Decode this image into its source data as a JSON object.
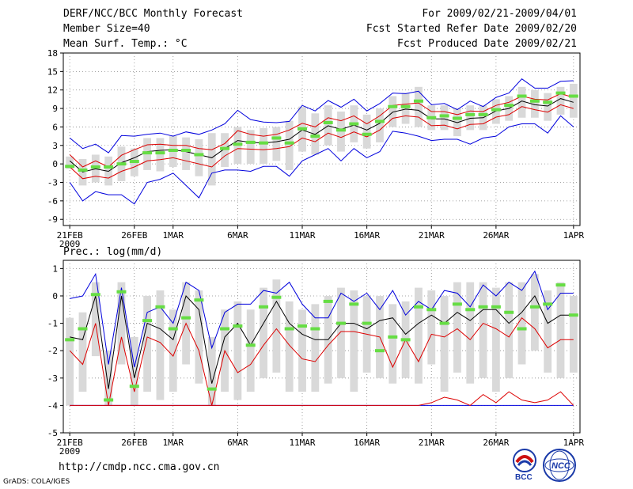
{
  "header": {
    "title": "DERF/NCC/BCC Monthly Forecast",
    "member_size": "Member Size=40",
    "variable1": "Mean Surf. Temp.: °C",
    "period": "For 2009/02/21-2009/04/01",
    "refer_date": "Fcst Started Refer Date 2009/02/20",
    "produced_date": "Fcst Produced Date 2009/02/21"
  },
  "footer": {
    "url": "http://cmdp.ncc.cma.gov.cn",
    "grads": "GrADS: COLA/IGES",
    "logo1_text": "BCC",
    "logo2_text": "NCC"
  },
  "colors": {
    "envelope": "#0000dd",
    "spread": "#dd0000",
    "mean": "#000000",
    "marker": "#66dd44",
    "box": "#d9d9d9"
  },
  "chart_data": [
    {
      "type": "line",
      "title": "Mean Surf. Temp.: °C",
      "x_ticks": [
        "21FEB",
        "26FEB",
        "1MAR",
        "6MAR",
        "11MAR",
        "16MAR",
        "21MAR",
        "26MAR",
        "1APR"
      ],
      "x_tick_days": [
        0,
        5,
        8,
        13,
        18,
        23,
        28,
        33,
        39
      ],
      "year_label": "2009",
      "ylim": [
        -10,
        18
      ],
      "y_ticks": [
        -9,
        -6,
        -3,
        0,
        3,
        6,
        9,
        12,
        15,
        18
      ],
      "days": 40,
      "series": [
        {
          "name": "upper envelope",
          "values": [
            4.2,
            2.5,
            3.2,
            1.8,
            4.6,
            4.5,
            4.8,
            5,
            4.5,
            5.2,
            4.8,
            5.5,
            6.5,
            8.7,
            7.2,
            6.8,
            6.7,
            6.9,
            9.5,
            8.6,
            10.3,
            9.2,
            10.5,
            8.6,
            9.8,
            11.5,
            11.4,
            11.8,
            9.6,
            9.8,
            8.8,
            10.2,
            9.3,
            10.8,
            11.5,
            13.8,
            12.3,
            12.3,
            13.4,
            13.5
          ]
        },
        {
          "name": "upper spread",
          "values": [
            1.5,
            -0.5,
            0.5,
            -0.5,
            1.4,
            2.3,
            3.1,
            3.2,
            3.0,
            3.0,
            2.5,
            2.3,
            3.3,
            5.4,
            4.8,
            4.5,
            4.8,
            5.5,
            6.6,
            6.0,
            7.5,
            7.0,
            7.8,
            6.5,
            7.8,
            9.5,
            9.7,
            9.9,
            8.5,
            8.5,
            8.0,
            8.6,
            8.5,
            9.5,
            10.0,
            11.0,
            10.5,
            10.4,
            11.4,
            10.8
          ]
        },
        {
          "name": "ensemble mean",
          "values": [
            0.5,
            -1.3,
            -0.8,
            -1.2,
            0.2,
            1.0,
            2.0,
            2.2,
            2.3,
            2.0,
            1.5,
            1.0,
            2.5,
            3.8,
            3.5,
            3.4,
            3.6,
            4.0,
            5.5,
            4.8,
            6.2,
            5.6,
            6.3,
            5.5,
            6.6,
            8.4,
            8.9,
            8.7,
            7.3,
            7.3,
            6.7,
            7.4,
            7.5,
            8.6,
            9.0,
            10.2,
            9.6,
            9.4,
            10.6,
            10.0
          ]
        },
        {
          "name": "lower spread",
          "values": [
            -0.5,
            -2.4,
            -2.0,
            -2.3,
            -1.2,
            -0.5,
            0.5,
            0.7,
            1.0,
            0.5,
            0.0,
            -0.5,
            1.3,
            2.5,
            2.4,
            2.3,
            2.5,
            2.8,
            4.2,
            3.6,
            5.0,
            4.3,
            5.2,
            4.4,
            5.5,
            7.4,
            7.8,
            7.6,
            6.2,
            6.3,
            5.7,
            6.4,
            6.5,
            7.6,
            8.0,
            9.3,
            8.8,
            8.4,
            9.6,
            9.0
          ]
        },
        {
          "name": "lower envelope",
          "values": [
            -3.0,
            -6.0,
            -4.5,
            -5.0,
            -5.0,
            -6.5,
            -3.0,
            -2.5,
            -1.5,
            -3.5,
            -5.5,
            -1.5,
            -1.0,
            -1.0,
            -1.2,
            -0.4,
            -0.4,
            -2.0,
            0.5,
            1.5,
            2.5,
            0.5,
            2.5,
            1.0,
            2.0,
            5.3,
            5.0,
            4.5,
            3.8,
            4.0,
            4.0,
            3.2,
            4.2,
            4.5,
            6.0,
            6.5,
            6.5,
            5.0,
            7.8,
            6.0
          ]
        },
        {
          "name": "observed",
          "values": [
            -0.4,
            -1.0,
            -0.5,
            -0.5,
            0.0,
            0.4,
            1.8,
            1.8,
            2.2,
            2.2,
            1.5,
            null,
            2.5,
            3.2,
            3.5,
            3.4,
            4.2,
            3.4,
            5.7,
            4.5,
            6.7,
            5.5,
            6.5,
            4.8,
            6.9,
            9.3,
            9.3,
            10.2,
            7.5,
            7.8,
            7.4,
            8.0,
            8.0,
            8.8,
            9.5,
            11.0,
            10.2,
            10.0,
            11.5,
            11.0
          ]
        }
      ],
      "boxes": [
        [
          -0.8,
          1.2
        ],
        [
          -3.5,
          0.8
        ],
        [
          -3.0,
          1.5
        ],
        [
          -3.5,
          1.2
        ],
        [
          -2.8,
          2.8
        ],
        [
          -2.0,
          2.5
        ],
        [
          -1.0,
          4.2
        ],
        [
          -1.2,
          4.2
        ],
        [
          -0.5,
          4.5
        ],
        [
          -1.0,
          4.3
        ],
        [
          -2.0,
          4.0
        ],
        [
          -3.5,
          5.0
        ],
        [
          -0.5,
          5.0
        ],
        [
          0.0,
          6.0
        ],
        [
          0.0,
          5.5
        ],
        [
          0.0,
          5.8
        ],
        [
          0.5,
          6.0
        ],
        [
          -1.0,
          7.0
        ],
        [
          2.0,
          9.3
        ],
        [
          1.5,
          8.2
        ],
        [
          3.0,
          9.5
        ],
        [
          2.0,
          8.5
        ],
        [
          3.5,
          9.5
        ],
        [
          2.5,
          8.0
        ],
        [
          3.5,
          9.0
        ],
        [
          6.0,
          11.0
        ],
        [
          6.5,
          11.5
        ],
        [
          6.0,
          12.5
        ],
        [
          5.5,
          9.5
        ],
        [
          5.5,
          9.5
        ],
        [
          4.5,
          9.0
        ],
        [
          5.5,
          9.5
        ],
        [
          5.5,
          9.5
        ],
        [
          6.5,
          10.5
        ],
        [
          7.0,
          11.0
        ],
        [
          7.5,
          12.5
        ],
        [
          7.5,
          12.0
        ],
        [
          7.0,
          11.5
        ],
        [
          8.0,
          12.5
        ],
        [
          7.5,
          13.0
        ]
      ]
    },
    {
      "type": "line",
      "title": "Prec.: log(mm/d)",
      "x_ticks": [
        "21FEB",
        "26FEB",
        "1MAR",
        "6MAR",
        "11MAR",
        "16MAR",
        "21MAR",
        "26MAR",
        "1APR"
      ],
      "x_tick_days": [
        0,
        5,
        8,
        13,
        18,
        23,
        28,
        33,
        39
      ],
      "year_label": "2009",
      "ylim": [
        -5,
        1.3
      ],
      "y_ticks": [
        -5,
        -4,
        -3,
        -2,
        -1,
        0,
        1
      ],
      "days": 40,
      "series": [
        {
          "name": "upper envelope",
          "values": [
            -0.1,
            0.0,
            0.8,
            -2.5,
            0.3,
            -2.6,
            -0.6,
            -0.4,
            -1.0,
            0.5,
            0.2,
            -1.9,
            -0.6,
            -0.3,
            -0.3,
            0.2,
            0.1,
            0.5,
            -0.3,
            -0.8,
            -0.8,
            0.1,
            -0.2,
            0.1,
            -0.5,
            0.2,
            -0.7,
            -0.2,
            -0.5,
            0.2,
            0.1,
            -0.4,
            0.4,
            0.0,
            0.5,
            0.2,
            0.9,
            -0.5,
            0.1,
            0.1
          ]
        },
        {
          "name": "ensemble mean",
          "values": [
            -1.5,
            -1.6,
            0.0,
            -3.4,
            0.0,
            -3.0,
            -1.0,
            -1.2,
            -1.6,
            0.0,
            -0.5,
            -3.2,
            -1.5,
            -1.0,
            -1.8,
            -1.0,
            -0.2,
            -1.0,
            -1.4,
            -1.6,
            -1.6,
            -1.0,
            -1.0,
            -1.2,
            -0.9,
            -0.8,
            -1.4,
            -1.0,
            -0.7,
            -1.0,
            -0.6,
            -0.9,
            -0.5,
            -0.5,
            -1.0,
            -0.6,
            0.0,
            -1.0,
            -0.7,
            -0.7
          ]
        },
        {
          "name": "lower spread",
          "values": [
            -2.0,
            -2.5,
            -1.0,
            -4.0,
            -1.5,
            -3.5,
            -1.5,
            -1.7,
            -2.2,
            -1.0,
            -2.0,
            -4.0,
            -2.0,
            -2.8,
            -2.5,
            -1.8,
            -1.2,
            -1.8,
            -2.3,
            -2.4,
            -1.8,
            -1.3,
            -1.3,
            -1.4,
            -1.5,
            -2.6,
            -1.6,
            -2.4,
            -1.4,
            -1.5,
            -1.2,
            -1.6,
            -1.0,
            -1.2,
            -1.5,
            -0.8,
            -1.2,
            -1.9,
            -1.6,
            -1.6
          ]
        },
        {
          "name": "lower envelope",
          "values": [
            -4,
            -4,
            -4,
            -4,
            -4,
            -4,
            -4,
            -4,
            -4,
            -4,
            -4,
            -4,
            -4,
            -4,
            -4,
            -4,
            -4,
            -4,
            -4,
            -4,
            -4,
            -4,
            -4,
            -4,
            -4,
            -4,
            -4,
            -4,
            -4,
            -4,
            -4,
            -4,
            -4,
            -4,
            -4,
            -4,
            -4,
            -4,
            -4,
            -4
          ]
        },
        {
          "name": "lower extreme",
          "values": [
            -4,
            -4,
            -4,
            -4,
            -4,
            -4,
            -4,
            -4,
            -4,
            -4,
            -4,
            -4,
            -4,
            -4,
            -4,
            -4,
            -4,
            -4,
            -4,
            -4,
            -4,
            -4,
            -4,
            -4,
            -4,
            -4,
            -4,
            -4,
            -3.9,
            -3.7,
            -3.8,
            -4.0,
            -3.6,
            -3.9,
            -3.5,
            -3.8,
            -3.9,
            -3.8,
            -3.5,
            -4.0
          ]
        },
        {
          "name": "observed",
          "values": [
            -1.6,
            -1.2,
            0.05,
            -3.8,
            0.15,
            -3.3,
            -0.9,
            -0.4,
            -1.2,
            -0.8,
            -0.15,
            -3.4,
            -1.2,
            -1.1,
            -1.8,
            -0.4,
            -0.05,
            -1.2,
            -1.1,
            -1.2,
            -0.2,
            -1.0,
            -0.3,
            -1.0,
            -2.0,
            -1.5,
            -1.6,
            -0.4,
            -0.5,
            -1.0,
            -0.3,
            -0.5,
            -0.4,
            -0.4,
            -0.6,
            -1.2,
            -0.4,
            -0.3,
            0.4,
            -0.7
          ]
        }
      ],
      "boxes": [
        [
          -4.0,
          -0.8
        ],
        [
          -3.5,
          -0.6
        ],
        [
          -2.2,
          0.5
        ],
        [
          -4.0,
          -2.0
        ],
        [
          -2.5,
          0.5
        ],
        [
          -4.0,
          -1.5
        ],
        [
          -3.5,
          0.0
        ],
        [
          -3.8,
          0.2
        ],
        [
          -3.5,
          -0.5
        ],
        [
          -2.5,
          0.5
        ],
        [
          -3.2,
          0.2
        ],
        [
          -4.0,
          -1.5
        ],
        [
          -3.5,
          -0.5
        ],
        [
          -3.8,
          -0.2
        ],
        [
          -3.5,
          -0.5
        ],
        [
          -3.0,
          0.3
        ],
        [
          -2.8,
          0.6
        ],
        [
          -3.5,
          -0.2
        ],
        [
          -3.5,
          -0.5
        ],
        [
          -3.5,
          -0.3
        ],
        [
          -3.2,
          0.0
        ],
        [
          -3.0,
          0.3
        ],
        [
          -3.5,
          0.2
        ],
        [
          -2.8,
          0.0
        ],
        [
          -3.0,
          0.0
        ],
        [
          -3.2,
          -0.3
        ],
        [
          -3.0,
          -0.2
        ],
        [
          -3.2,
          0.3
        ],
        [
          -2.5,
          0.2
        ],
        [
          -3.5,
          0.0
        ],
        [
          -2.8,
          0.5
        ],
        [
          -3.2,
          0.5
        ],
        [
          -3.0,
          0.5
        ],
        [
          -3.5,
          0.3
        ],
        [
          -3.0,
          0.5
        ],
        [
          -2.5,
          0.5
        ],
        [
          -2.0,
          0.8
        ],
        [
          -2.8,
          0.2
        ],
        [
          -3.0,
          0.5
        ],
        [
          -2.8,
          0.0
        ]
      ]
    }
  ]
}
